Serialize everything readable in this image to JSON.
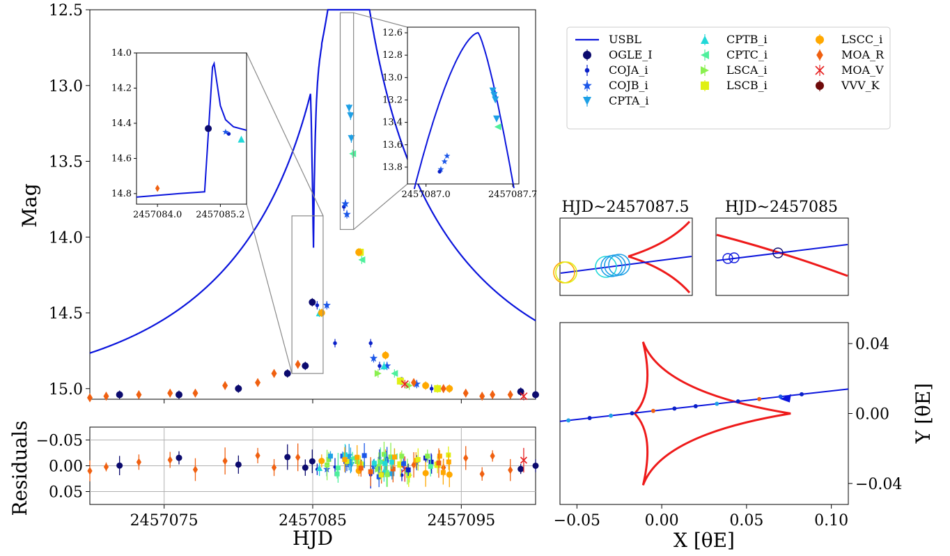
{
  "chart_data": [
    {
      "id": "main",
      "type": "scatter",
      "xlabel": "HJD",
      "ylabel": "Mag",
      "xlim": [
        2457070,
        2457100
      ],
      "ylim": [
        15.07,
        12.5
      ],
      "xticks": [
        2457075,
        2457085,
        2457095
      ],
      "yticks": [
        12.5,
        13.0,
        13.5,
        14.0,
        14.5,
        15.0
      ],
      "ytick_labels": [
        "12.5",
        "13.0",
        "13.5",
        "14.0",
        "14.5",
        "15.0"
      ],
      "model": {
        "name": "USBL",
        "color": "#0a14dc",
        "t0": 2457087.42,
        "peak_mag": 12.6,
        "base_mag": 15.07,
        "spike_t": 2457085.05,
        "spike_mag": 14.07
      },
      "series": [
        {
          "name": "OGLE_I",
          "color": "#0b0a6e",
          "marker": "circle",
          "points": [
            [
              2457072,
              15.04
            ],
            [
              2457076,
              15.04
            ],
            [
              2457080,
              15.0
            ],
            [
              2457083.3,
              14.9
            ],
            [
              2457084.5,
              14.85
            ],
            [
              2457084.97,
              14.43
            ],
            [
              2457099,
              15.02
            ],
            [
              2457100,
              15.04
            ]
          ]
        },
        {
          "name": "COJA_i",
          "color": "#0a20c8",
          "marker": "dot",
          "points": [
            [
              2457085.3,
              14.45
            ],
            [
              2457086.5,
              14.7
            ],
            [
              2457087.1,
              13.8
            ],
            [
              2457088.9,
              14.7
            ],
            [
              2457089.5,
              14.85
            ],
            [
              2457091,
              14.95
            ],
            [
              2457093,
              15.0
            ]
          ]
        },
        {
          "name": "COJB_i",
          "color": "#1a56e8",
          "marker": "star",
          "points": [
            [
              2457085.95,
              14.45
            ],
            [
              2457087.2,
              13.78
            ],
            [
              2457087.3,
              13.85
            ],
            [
              2457089.1,
              14.8
            ],
            [
              2457090,
              14.85
            ],
            [
              2457092,
              14.97
            ]
          ]
        },
        {
          "name": "CPTA_i",
          "color": "#1ea0e6",
          "marker": "tri-down",
          "points": [
            [
              2457087.45,
              13.15
            ],
            [
              2457087.55,
              13.2
            ],
            [
              2457087.6,
              13.35
            ]
          ]
        },
        {
          "name": "CPTB_i",
          "color": "#22d8d8",
          "marker": "tri-up",
          "points": [
            [
              2457085.45,
              14.5
            ],
            [
              2457089.8,
              14.85
            ]
          ]
        },
        {
          "name": "CPTC_i",
          "color": "#4ef09c",
          "marker": "tri-left",
          "points": [
            [
              2457087.68,
              13.45
            ],
            [
              2457088.3,
              14.15
            ],
            [
              2457090.5,
              14.9
            ]
          ]
        },
        {
          "name": "LSCA_i",
          "color": "#8af050",
          "marker": "tri-right",
          "points": [
            [
              2457089.4,
              14.9
            ],
            [
              2457091.5,
              14.98
            ]
          ]
        },
        {
          "name": "LSCB_i",
          "color": "#e0f014",
          "marker": "square",
          "points": [
            [
              2457088.2,
              14.1
            ],
            [
              2457090.9,
              14.95
            ],
            [
              2457093.4,
              15.0
            ]
          ]
        },
        {
          "name": "LSCC_i",
          "color": "#ffa800",
          "marker": "circle",
          "points": [
            [
              2457085.6,
              14.5
            ],
            [
              2457088.1,
              14.1
            ],
            [
              2457089.9,
              14.78
            ],
            [
              2457092.6,
              14.98
            ],
            [
              2457094.2,
              15.0
            ]
          ]
        },
        {
          "name": "MOA_R",
          "color": "#f06010",
          "marker": "diamond",
          "points": [
            [
              2457070,
              15.06
            ],
            [
              2457071.1,
              15.05
            ],
            [
              2457073.3,
              15.04
            ],
            [
              2457075.4,
              15.03
            ],
            [
              2457077.1,
              15.03
            ],
            [
              2457079.1,
              14.98
            ],
            [
              2457081.3,
              14.96
            ],
            [
              2457082.4,
              14.9
            ],
            [
              2457084.0,
              14.84
            ],
            [
              2457091.8,
              14.96
            ],
            [
              2457093.8,
              15.0
            ],
            [
              2457095.3,
              15.03
            ],
            [
              2457096.4,
              15.05
            ],
            [
              2457097.1,
              15.04
            ],
            [
              2457098.3,
              15.04
            ]
          ]
        },
        {
          "name": "MOA_V",
          "color": "#e62020",
          "marker": "x",
          "points": [
            [
              2457091.2,
              14.97
            ],
            [
              2457099.2,
              15.05
            ]
          ]
        },
        {
          "name": "VVV_K",
          "color": "#6e0a0a",
          "marker": "circle",
          "points": []
        }
      ]
    },
    {
      "id": "inset1",
      "type": "line",
      "xlim": [
        2457083.6,
        2457085.7
      ],
      "ylim": [
        14.86,
        14.0
      ],
      "xticks": [
        2457084.0,
        2457085.2
      ],
      "xtick_labels": [
        "2457084.0",
        "2457085.2"
      ],
      "yticks": [
        14.0,
        14.2,
        14.4,
        14.6,
        14.8
      ],
      "ytick_labels": [
        "14.0",
        "14.2",
        "14.4",
        "14.6",
        "14.8"
      ]
    },
    {
      "id": "inset2",
      "type": "line",
      "xlim": [
        2457086.85,
        2457087.75
      ],
      "ylim": [
        13.95,
        12.55
      ],
      "xticks": [
        2457087.0,
        2457087.7
      ],
      "xtick_labels": [
        "2457087.0",
        "2457087.7"
      ],
      "yticks": [
        12.6,
        12.8,
        13.0,
        13.2,
        13.4,
        13.6,
        13.8
      ],
      "ytick_labels": [
        "12.6",
        "12.8",
        "13.0",
        "13.2",
        "13.4",
        "13.6",
        "13.8"
      ]
    },
    {
      "id": "residuals",
      "type": "scatter",
      "ylabel": "Residuals",
      "xlabel": "HJD",
      "ylim": [
        0.075,
        -0.075
      ],
      "yticks": [
        -0.05,
        0.0,
        0.05
      ],
      "ytick_labels": [
        "−0.05",
        "0.00",
        "0.05"
      ],
      "xtick_labels": [
        "2457075",
        "2457085",
        "2457095"
      ]
    },
    {
      "id": "caustic",
      "type": "line",
      "xlabel": "X [θE]",
      "ylabel": "Y [θE]",
      "xlim": [
        -0.06,
        0.11
      ],
      "ylim": [
        -0.052,
        0.052
      ],
      "xticks": [
        -0.05,
        0.0,
        0.05,
        0.1
      ],
      "xtick_labels": [
        "−0.05",
        "0.00",
        "0.05",
        "0.10"
      ],
      "yticks": [
        -0.04,
        0.0,
        0.04
      ],
      "ytick_labels": [
        "−0.04",
        "0.00",
        "0.04"
      ],
      "caustic_color": "#ee1a1a",
      "trajectory_color": "#0a14dc"
    },
    {
      "id": "zoom1",
      "type": "line",
      "title": "HJD~2457087.5"
    },
    {
      "id": "zoom2",
      "type": "line",
      "title": "HJD~2457085"
    }
  ],
  "legend": {
    "entries": [
      "USBL",
      "OGLE_I",
      "COJA_i",
      "COJB_i",
      "CPTA_i",
      "CPTB_i",
      "CPTC_i",
      "LSCA_i",
      "LSCB_i",
      "LSCC_i",
      "MOA_R",
      "MOA_V",
      "VVV_K"
    ]
  }
}
